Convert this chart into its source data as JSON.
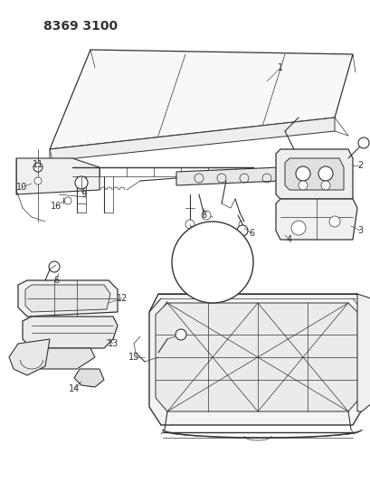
{
  "title": "8369 3100",
  "background_color": "#ffffff",
  "line_color": "#333333",
  "title_fontsize": 10,
  "title_font_weight": "bold",
  "fig_width": 4.1,
  "fig_height": 5.33,
  "dpi": 100
}
